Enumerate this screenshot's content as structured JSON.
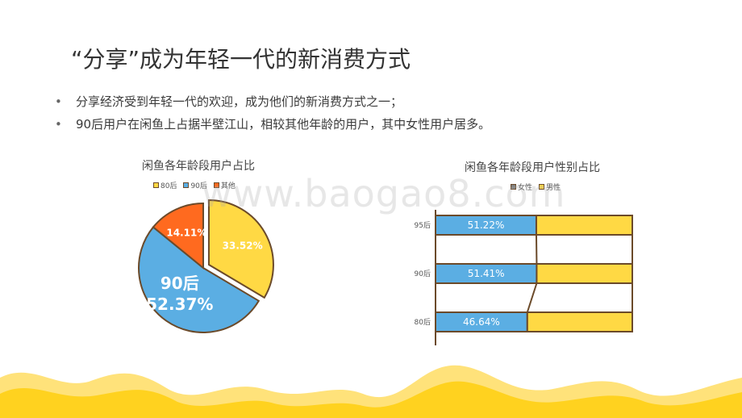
{
  "slide": {
    "title": "“分享”成为年轻一代的新消费方式",
    "bullets": [
      "分享经济受到年轻一代的欢迎，成为他们的新消费方式之一；",
      "90后用户在闲鱼上占据半壁江山，相较其他年龄的用户，其中女性用户居多。"
    ],
    "watermark": "www.baogao8.com"
  },
  "colors": {
    "yellow": "#FFD944",
    "blue": "#5BAEE3",
    "orange": "#FF6A1F",
    "gray": "#7F7F7F",
    "outline": "#6B4A2A"
  },
  "chart_data": [
    {
      "type": "pie",
      "title": "闲鱼各年龄段用户占比",
      "legend": [
        "80后",
        "90后",
        "其他"
      ],
      "slices": [
        {
          "label": "80后",
          "value": 33.52,
          "value_label": "33.52%",
          "color": "#FFD944"
        },
        {
          "label": "90后",
          "value": 52.37,
          "value_label": "52.37%",
          "color": "#5BAEE3",
          "category_label": "90后"
        },
        {
          "label": "其他",
          "value": 14.11,
          "value_label": "14.11%",
          "color": "#FF6A1F"
        }
      ]
    },
    {
      "type": "bar",
      "orientation": "horizontal",
      "stacked": "percent",
      "title": "闲鱼各年龄段用户性别占比",
      "categories": [
        "95后",
        "90后",
        "80后"
      ],
      "legend": [
        "女性",
        "男性"
      ],
      "series": [
        {
          "name": "女性",
          "values": [
            51.22,
            51.41,
            46.64
          ],
          "labels": [
            "51.22%",
            "51.41%",
            "46.64%"
          ],
          "color": "#5BAEE3",
          "legend_color": "#7F7F7F"
        },
        {
          "name": "男性",
          "values": [
            48.78,
            48.59,
            53.36
          ],
          "color": "#FFD944"
        }
      ]
    }
  ]
}
